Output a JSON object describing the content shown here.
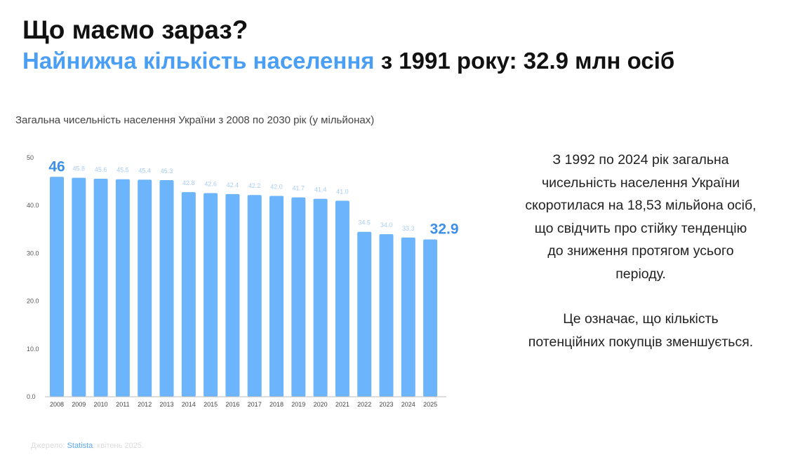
{
  "header": {
    "title": "Що маємо зараз?",
    "subtitle_highlight": "Найнижча кількість населення",
    "subtitle_rest": " з 1991 року:  32.9 млн осіб"
  },
  "chart_data": {
    "type": "bar",
    "title": "Загальна чисельність населення України з 2008 по 2030 рік (у мільйонах)",
    "categories": [
      "2008",
      "2009",
      "2010",
      "2011",
      "2012",
      "2013",
      "2014",
      "2015",
      "2016",
      "2017",
      "2018",
      "2019",
      "2020",
      "2021",
      "2022",
      "2023",
      "2024",
      "2025"
    ],
    "values": [
      46.0,
      45.8,
      45.6,
      45.5,
      45.4,
      45.3,
      42.8,
      42.6,
      42.4,
      42.2,
      42.0,
      41.7,
      41.4,
      41.0,
      34.5,
      34.0,
      33.3,
      32.9
    ],
    "labels": [
      "46",
      "45.8",
      "45.6",
      "45.5",
      "45.4",
      "45.3",
      "42.8",
      "42.6",
      "42.4",
      "42.2",
      "42.0",
      "41.7",
      "41.4",
      "41.0",
      "34.5",
      "34.0",
      "33.3",
      "32.9"
    ],
    "highlighted_labels": [
      "2008",
      "2025"
    ],
    "ylim": [
      0,
      50
    ],
    "yticks": [
      {
        "v": 0,
        "label": "0.0"
      },
      {
        "v": 10,
        "label": "10.0"
      },
      {
        "v": 20,
        "label": "20.0"
      },
      {
        "v": 30,
        "label": "30.0"
      },
      {
        "v": 40,
        "label": "40.0"
      },
      {
        "v": 50,
        "label": "50"
      }
    ],
    "grid": false,
    "bar_color": "#6cb4fb",
    "label_color": "#a9cdf3",
    "highlight_color": "#3d8fe8"
  },
  "side_text": {
    "p1": "З 1992 по 2024 рік загальна чисельність населення України скоротилася на 18,53 мільйона осіб, що свідчить про стійку тенденцію до зниження протягом усього періоду.",
    "p2": "Це означає, що кількість потенційних покупців зменшується."
  },
  "source": {
    "prefix": "Джерело: ",
    "link": "Statista",
    "suffix": ", квітень 2025."
  }
}
